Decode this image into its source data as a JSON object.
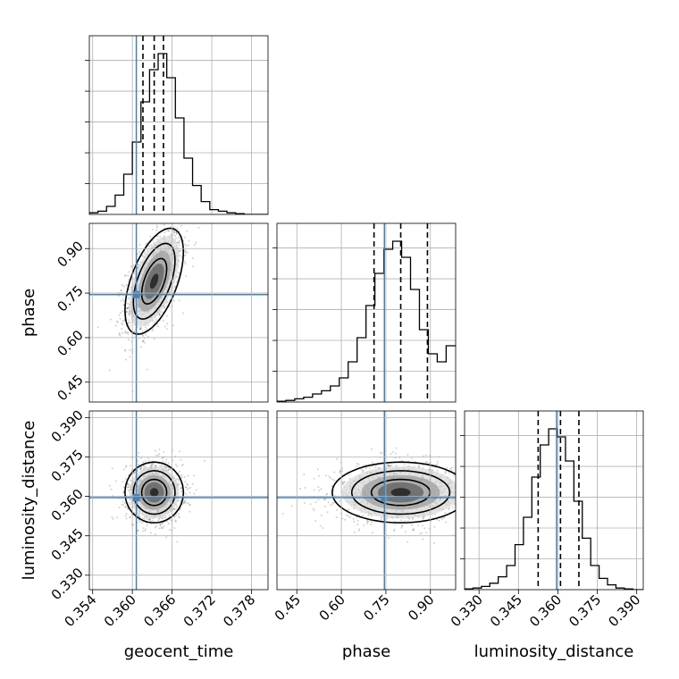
{
  "chart_data": {
    "type": "corner",
    "parameters": [
      "geocent_time",
      "phase",
      "luminosity_distance"
    ],
    "axis_labels": {
      "geocent_time": "geocent_time",
      "phase": "phase",
      "luminosity_distance": "luminosity_distance"
    },
    "ranges": {
      "geocent_time": [
        0.3535,
        0.3805
      ],
      "phase": [
        0.383,
        0.985
      ],
      "luminosity_distance": [
        0.3245,
        0.3925
      ]
    },
    "ticks": {
      "geocent_time": [
        "0.354",
        "0.360",
        "0.366",
        "0.372",
        "0.378"
      ],
      "phase": [
        "0.45",
        "0.60",
        "0.75",
        "0.90"
      ],
      "luminosity_distance": [
        "0.330",
        "0.345",
        "0.360",
        "0.375",
        "0.390"
      ]
    },
    "truths": {
      "geocent_time": 0.3606,
      "phase": 0.745,
      "luminosity_distance": 0.3595
    },
    "truth_color": "#4682b4",
    "hist_color": "#000000",
    "grid": true,
    "histograms": {
      "geocent_time": {
        "bin_edges": [
          0.3535,
          0.3548,
          0.3561,
          0.3574,
          0.3587,
          0.36,
          0.3613,
          0.3626,
          0.3639,
          0.3652,
          0.3665,
          0.3678,
          0.3691,
          0.3704,
          0.3717,
          0.373,
          0.3743,
          0.3756,
          0.3769,
          0.3782,
          0.3795,
          0.3805
        ],
        "counts": [
          0.01,
          0.02,
          0.05,
          0.12,
          0.25,
          0.45,
          0.7,
          0.9,
          1.0,
          0.85,
          0.6,
          0.35,
          0.18,
          0.08,
          0.03,
          0.02,
          0.01,
          0.005,
          0.0,
          0.0,
          0.0
        ],
        "quantiles": [
          0.3616,
          0.3633,
          0.3647
        ]
      },
      "phase": {
        "bin_edges": [
          0.383,
          0.413,
          0.443,
          0.473,
          0.503,
          0.533,
          0.563,
          0.593,
          0.623,
          0.653,
          0.683,
          0.713,
          0.743,
          0.773,
          0.803,
          0.833,
          0.863,
          0.893,
          0.923,
          0.953,
          0.985
        ],
        "counts": [
          0.005,
          0.01,
          0.02,
          0.03,
          0.05,
          0.07,
          0.1,
          0.15,
          0.25,
          0.4,
          0.6,
          0.8,
          0.95,
          1.0,
          0.9,
          0.7,
          0.45,
          0.3,
          0.25,
          0.35
        ],
        "quantiles": [
          0.71,
          0.8,
          0.89
        ]
      },
      "luminosity_distance": {
        "bin_edges": [
          0.3245,
          0.3277,
          0.3309,
          0.3341,
          0.3373,
          0.3405,
          0.3437,
          0.3469,
          0.3501,
          0.3533,
          0.3565,
          0.3597,
          0.3629,
          0.3661,
          0.3693,
          0.3725,
          0.3757,
          0.3789,
          0.3821,
          0.3853,
          0.3885,
          0.3925
        ],
        "counts": [
          0.005,
          0.01,
          0.02,
          0.04,
          0.08,
          0.15,
          0.28,
          0.45,
          0.7,
          0.9,
          1.0,
          0.95,
          0.8,
          0.55,
          0.32,
          0.15,
          0.07,
          0.03,
          0.01,
          0.005,
          0.0
        ],
        "quantiles": [
          0.3525,
          0.361,
          0.368
        ]
      }
    },
    "joint": [
      {
        "x": "geocent_time",
        "y": "phase",
        "center": [
          0.3633,
          0.79
        ],
        "sigma": [
          0.0021,
          0.085
        ],
        "rho": 0.55,
        "levels": [
          0.9,
          1.5,
          2.1
        ]
      },
      {
        "x": "geocent_time",
        "y": "luminosity_distance",
        "center": [
          0.3633,
          0.3615
        ],
        "sigma": [
          0.0021,
          0.0055
        ],
        "rho": 0.0,
        "levels": [
          0.9,
          1.5,
          2.1
        ]
      },
      {
        "x": "phase",
        "y": "luminosity_distance",
        "center": [
          0.8,
          0.3615
        ],
        "sigma": [
          0.11,
          0.0055
        ],
        "rho": 0.0,
        "levels": [
          0.9,
          1.5,
          2.1
        ]
      }
    ]
  }
}
